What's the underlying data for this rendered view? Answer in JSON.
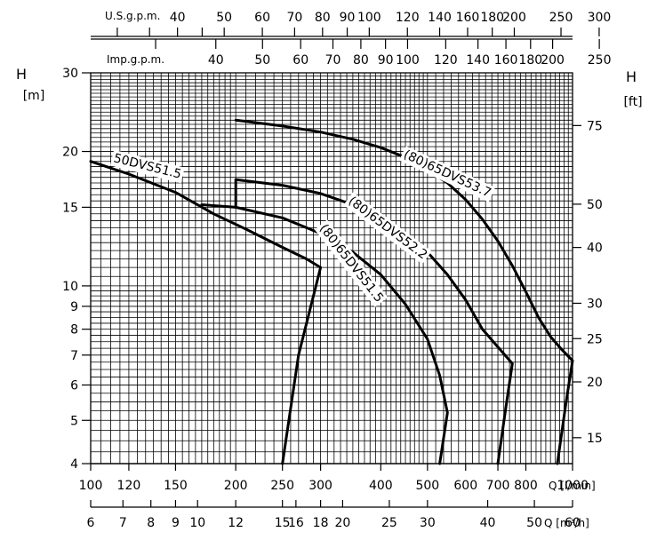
{
  "chart_data": {
    "type": "line",
    "x_scale": "log",
    "y_scale": "log",
    "xlim": [
      100,
      1000
    ],
    "ylim": [
      4,
      30
    ],
    "grid": true,
    "y_left_label": "H",
    "y_left_unit": "[m]",
    "y_right_label": "H",
    "y_right_unit": "[ft]",
    "x_axis_lmin": {
      "unit": "Q [l/min]",
      "ticks": [
        {
          "v": 100,
          "t": "100"
        },
        {
          "v": 120,
          "t": "120"
        },
        {
          "v": 150,
          "t": "150"
        },
        {
          "v": 200,
          "t": "200"
        },
        {
          "v": 250,
          "t": "250"
        },
        {
          "v": 300,
          "t": "300"
        },
        {
          "v": 400,
          "t": "400"
        },
        {
          "v": 500,
          "t": "500"
        },
        {
          "v": 600,
          "t": "600"
        },
        {
          "v": 700,
          "t": "700"
        },
        {
          "v": 800,
          "t": "800"
        },
        {
          "v": 1000,
          "t": "1000"
        }
      ]
    },
    "x_axis_m3h": {
      "unit": "Q [m³/h]",
      "ticks": [
        {
          "v": 6,
          "t": "6"
        },
        {
          "v": 7,
          "t": "7"
        },
        {
          "v": 8,
          "t": "8"
        },
        {
          "v": 9,
          "t": "9"
        },
        {
          "v": 10,
          "t": "10"
        },
        {
          "v": 12,
          "t": "12"
        },
        {
          "v": 15,
          "t": "15"
        },
        {
          "v": 16,
          "t": "16"
        },
        {
          "v": 18,
          "t": "18"
        },
        {
          "v": 20,
          "t": "20"
        },
        {
          "v": 25,
          "t": "25"
        },
        {
          "v": 30,
          "t": "30"
        },
        {
          "v": 40,
          "t": "40"
        },
        {
          "v": 50,
          "t": "50"
        },
        {
          "v": 60,
          "t": "60"
        }
      ]
    },
    "x_axis_usgpm": {
      "unit": "U.S.g.p.m.",
      "ticks": [
        {
          "v": 40,
          "t": "40"
        },
        {
          "v": 50,
          "t": "50"
        },
        {
          "v": 60,
          "t": "60"
        },
        {
          "v": 70,
          "t": "70"
        },
        {
          "v": 80,
          "t": "80"
        },
        {
          "v": 90,
          "t": "90"
        },
        {
          "v": 100,
          "t": "100"
        },
        {
          "v": 120,
          "t": "120"
        },
        {
          "v": 140,
          "t": "140"
        },
        {
          "v": 160,
          "t": "160"
        },
        {
          "v": 180,
          "t": "180"
        },
        {
          "v": 200,
          "t": "200"
        },
        {
          "v": 250,
          "t": "250"
        },
        {
          "v": 300,
          "t": "300"
        }
      ],
      "minor": [
        30,
        35,
        45
      ]
    },
    "x_axis_impgpm": {
      "unit": "Imp.g.p.m.",
      "ticks": [
        {
          "v": 40,
          "t": "40"
        },
        {
          "v": 50,
          "t": "50"
        },
        {
          "v": 60,
          "t": "60"
        },
        {
          "v": 70,
          "t": "70"
        },
        {
          "v": 80,
          "t": "80"
        },
        {
          "v": 90,
          "t": "90"
        },
        {
          "v": 100,
          "t": "100"
        },
        {
          "v": 120,
          "t": "120"
        },
        {
          "v": 140,
          "t": "140"
        },
        {
          "v": 160,
          "t": "160"
        },
        {
          "v": 180,
          "t": "180"
        },
        {
          "v": 200,
          "t": "200"
        },
        {
          "v": 250,
          "t": "250"
        }
      ],
      "minor": [
        30
      ]
    },
    "y_left_ticks": [
      {
        "v": 4,
        "t": "4"
      },
      {
        "v": 5,
        "t": "5"
      },
      {
        "v": 6,
        "t": "6"
      },
      {
        "v": 7,
        "t": "7"
      },
      {
        "v": 8,
        "t": "8"
      },
      {
        "v": 9,
        "t": "9"
      },
      {
        "v": 10,
        "t": "10"
      },
      {
        "v": 15,
        "t": "15"
      },
      {
        "v": 20,
        "t": "20"
      },
      {
        "v": 30,
        "t": "30"
      }
    ],
    "y_right_ticks": [
      {
        "v": 15,
        "t": "15"
      },
      {
        "v": 20,
        "t": "20"
      },
      {
        "v": 25,
        "t": "25"
      },
      {
        "v": 30,
        "t": "30"
      },
      {
        "v": 40,
        "t": "40"
      },
      {
        "v": 50,
        "t": "50"
      },
      {
        "v": 75,
        "t": "75"
      }
    ],
    "series": [
      {
        "name": "50DVS51.5",
        "points": [
          [
            100,
            19
          ],
          [
            120,
            17.8
          ],
          [
            150,
            16.2
          ],
          [
            180,
            14.5
          ],
          [
            210,
            13.4
          ],
          [
            250,
            12.2
          ],
          [
            280,
            11.5
          ],
          [
            300,
            11
          ],
          [
            270,
            7
          ],
          [
            250,
            4
          ]
        ]
      },
      {
        "name": "(80)65DVS51.5",
        "points": [
          [
            170,
            15.2
          ],
          [
            200,
            15
          ],
          [
            250,
            14.2
          ],
          [
            300,
            13.1
          ],
          [
            350,
            11.9
          ],
          [
            400,
            10.6
          ],
          [
            450,
            9.1
          ],
          [
            500,
            7.6
          ],
          [
            530,
            6.3
          ],
          [
            550,
            5.2
          ],
          [
            530,
            4
          ]
        ]
      },
      {
        "name": "(80)65DVS52.2",
        "points": [
          [
            200,
            15
          ],
          [
            200,
            17.3
          ],
          [
            250,
            16.8
          ],
          [
            300,
            16.1
          ],
          [
            350,
            15.2
          ],
          [
            400,
            14.2
          ],
          [
            450,
            13.1
          ],
          [
            500,
            11.9
          ],
          [
            550,
            10.6
          ],
          [
            600,
            9.3
          ],
          [
            650,
            8
          ],
          [
            700,
            7.3
          ],
          [
            750,
            6.7
          ],
          [
            730,
            5.5
          ],
          [
            700,
            4
          ]
        ]
      },
      {
        "name": "(80)65DVS53.7",
        "points": [
          [
            200,
            23.5
          ],
          [
            250,
            22.8
          ],
          [
            300,
            22.1
          ],
          [
            350,
            21.3
          ],
          [
            400,
            20.4
          ],
          [
            450,
            19.4
          ],
          [
            500,
            18.2
          ],
          [
            550,
            17
          ],
          [
            600,
            15.6
          ],
          [
            650,
            14.1
          ],
          [
            700,
            12.6
          ],
          [
            750,
            11.1
          ],
          [
            800,
            9.7
          ],
          [
            850,
            8.5
          ],
          [
            900,
            7.7
          ],
          [
            950,
            7.2
          ],
          [
            1000,
            6.8
          ],
          [
            970,
            5.5
          ],
          [
            930,
            4
          ]
        ]
      }
    ]
  }
}
